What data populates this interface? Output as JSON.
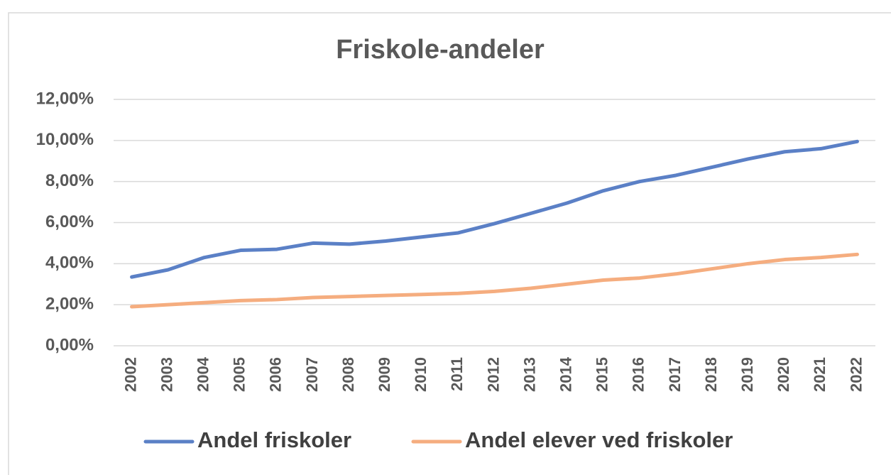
{
  "chart_data": {
    "type": "line",
    "title": "Friskole-andeler",
    "categories": [
      "2002",
      "2003",
      "2004",
      "2005",
      "2006",
      "2007",
      "2008",
      "2009",
      "2010",
      "2011",
      "2012",
      "2013",
      "2014",
      "2015",
      "2016",
      "2017",
      "2018",
      "2019",
      "2020",
      "2021",
      "2022"
    ],
    "series": [
      {
        "name": "Andel friskoler",
        "color": "#5b80c6",
        "values": [
          3.35,
          3.7,
          4.3,
          4.65,
          4.7,
          5.0,
          4.95,
          5.1,
          5.3,
          5.5,
          5.95,
          6.45,
          6.95,
          7.55,
          8.0,
          8.3,
          8.7,
          9.1,
          9.45,
          9.6,
          9.95
        ]
      },
      {
        "name": "Andel elever ved friskoler",
        "color": "#f5ad7f",
        "values": [
          1.9,
          2.0,
          2.1,
          2.2,
          2.25,
          2.35,
          2.4,
          2.45,
          2.5,
          2.55,
          2.65,
          2.8,
          3.0,
          3.2,
          3.3,
          3.5,
          3.75,
          4.0,
          4.2,
          4.3,
          4.45
        ]
      }
    ],
    "ylim": [
      0,
      12
    ],
    "yticks": [
      {
        "value": 0,
        "label": "0,00%"
      },
      {
        "value": 2,
        "label": "2,00%"
      },
      {
        "value": 4,
        "label": "4,00%"
      },
      {
        "value": 6,
        "label": "6,00%"
      },
      {
        "value": 8,
        "label": "8,00%"
      },
      {
        "value": 10,
        "label": "10,00%"
      },
      {
        "value": 12,
        "label": "12,00%"
      }
    ],
    "grid": true,
    "legend": "bottom"
  }
}
